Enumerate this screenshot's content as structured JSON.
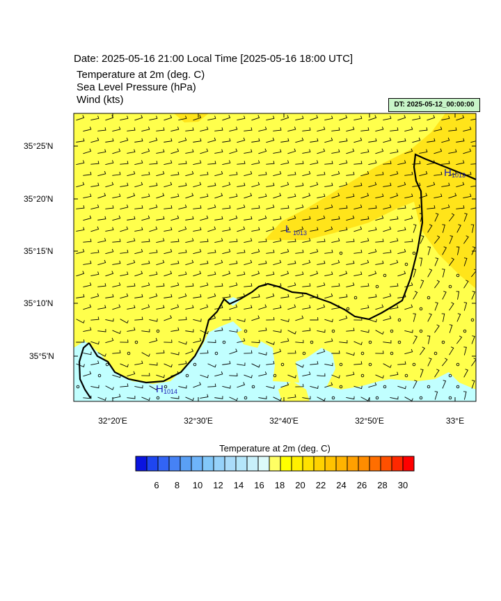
{
  "header": {
    "title": "Date: 2025-05-16  21:00 Local Time [2025-05-16  18:00 UTC]",
    "fields": [
      "Temperature at 2m   (deg. C)",
      "Sea Level Pressure   (hPa)",
      "Wind   (kts)"
    ],
    "dt_label": "DT: 2025-05-12_00:00:00"
  },
  "map": {
    "lat_labels": [
      "35°25'N",
      "35°20'N",
      "35°15'N",
      "35°10'N",
      "35°5'N"
    ],
    "lon_labels": [
      "32°20'E",
      "32°30'E",
      "32°40'E",
      "32°50'E",
      "33°E"
    ],
    "pressure_centers": [
      {
        "type": "H",
        "value": "1014"
      },
      {
        "type": "L",
        "value": "1013"
      },
      {
        "type": "H",
        "value": "1013"
      }
    ],
    "colors": {
      "land_warm": "#ffff4c",
      "warm_band": "#ffe41a",
      "cool_sea": "#c1ffff",
      "coast": "#000000"
    }
  },
  "colorbar": {
    "title": "Temperature at 2m  (deg. C)",
    "labels": [
      "6",
      "8",
      "10",
      "12",
      "14",
      "16",
      "18",
      "20",
      "22",
      "24",
      "26",
      "28",
      "30"
    ],
    "colors": [
      "#0a14e0",
      "#1e46f0",
      "#3264f5",
      "#4682f5",
      "#5aa0f5",
      "#6eb4fa",
      "#82c8fa",
      "#96d2fa",
      "#aadcfa",
      "#b4e6fa",
      "#c8f0fa",
      "#dcfafa",
      "#ffff64",
      "#ffff00",
      "#fff000",
      "#ffe100",
      "#ffd200",
      "#ffc300",
      "#ffb400",
      "#ffa000",
      "#ff8c00",
      "#ff6e00",
      "#ff5000",
      "#ff2800",
      "#ff0000"
    ]
  }
}
